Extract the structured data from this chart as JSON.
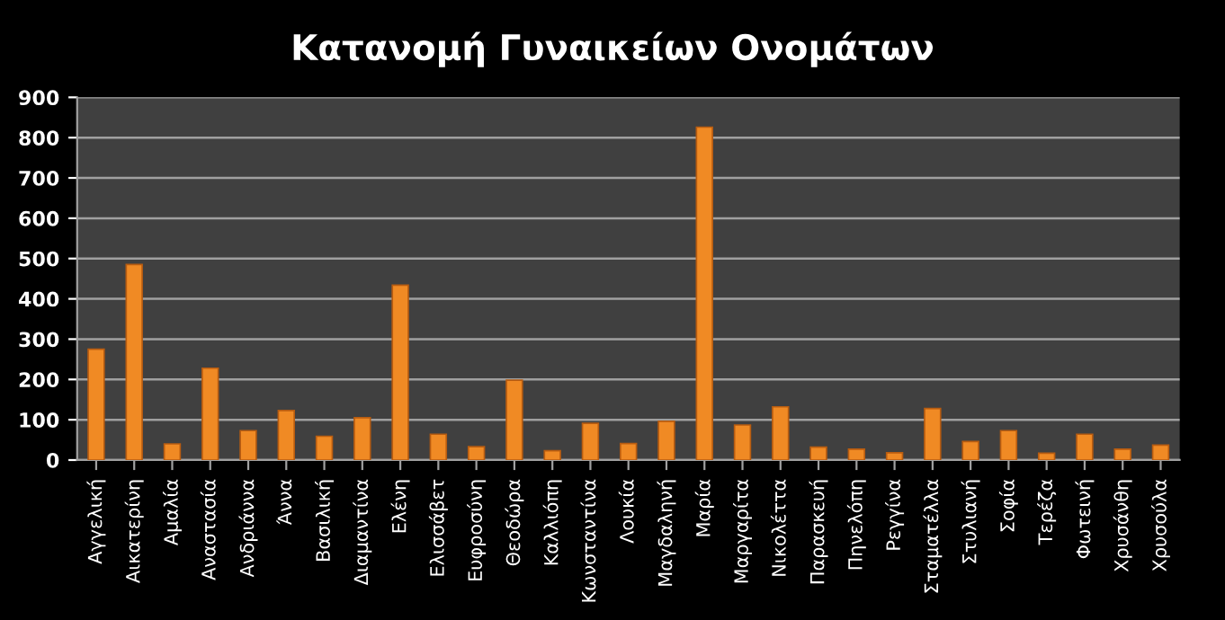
{
  "chart_data": {
    "type": "bar",
    "title": "Κατανομή Γυναικείων Ονομάτων",
    "categories": [
      "Αγγελική",
      "Αικατερίνη",
      "Αμαλία",
      "Αναστασία",
      "Ανδριάννα",
      "Άννα",
      "Βασιλική",
      "Διαμαντίνα",
      "Ελένη",
      "Ελισσάβετ",
      "Ευφροσύνη",
      "Θεοδώρα",
      "Καλλιόπη",
      "Κωνσταντίνα",
      "Λουκία",
      "Μαγδαληνή",
      "Μαρία",
      "Μαργαρίτα",
      "Νικολέττα",
      "Παρασκευή",
      "Πηνελόπη",
      "Ρεγγίνα",
      "Σταματέλλα",
      "Στυλιανή",
      "Σοφία",
      "Τερέζα",
      "Φωτεινή",
      "Χρυσάνθη",
      "Χρυσούλα"
    ],
    "values": [
      275,
      485,
      40,
      228,
      73,
      123,
      59,
      105,
      434,
      64,
      33,
      198,
      23,
      91,
      41,
      96,
      826,
      87,
      132,
      32,
      27,
      18,
      128,
      46,
      73,
      17,
      64,
      27,
      37
    ],
    "color": "#f08a24",
    "ylim": [
      0,
      900
    ],
    "yticks": [
      0,
      100,
      200,
      300,
      400,
      500,
      600,
      700,
      800,
      900
    ],
    "grid": "y"
  }
}
